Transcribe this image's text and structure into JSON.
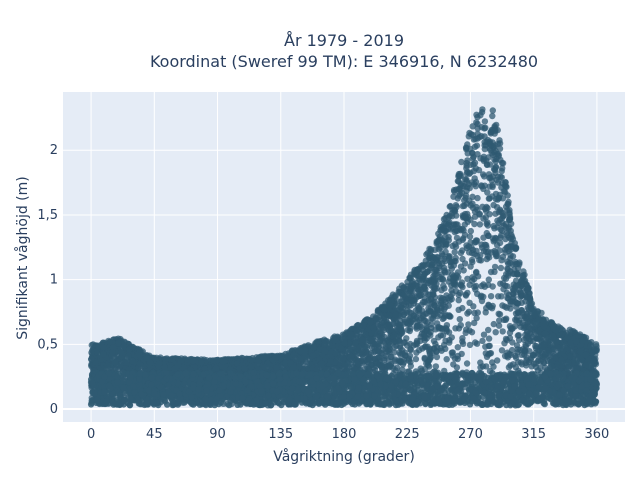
{
  "chart_data": {
    "type": "scatter",
    "title_line1": "År 1979 - 2019",
    "title_line2": "Koordinat (Sweref 99 TM): E 346916, N 6232480",
    "xlabel": "Vågriktning (grader)",
    "ylabel": "Signifikant våghöjd (m)",
    "xlim": [
      -20,
      380
    ],
    "ylim": [
      -0.1,
      2.45
    ],
    "x_ticks": [
      0,
      45,
      90,
      135,
      180,
      225,
      270,
      315,
      360
    ],
    "x_tick_labels": [
      "0",
      "45",
      "90",
      "135",
      "180",
      "225",
      "270",
      "315",
      "360"
    ],
    "y_ticks": [
      0,
      0.5,
      1,
      1.5,
      2
    ],
    "y_tick_labels": [
      "0",
      "0,5",
      "1",
      "1,5",
      "2"
    ],
    "grid": true,
    "marker_color": "#2f5a72",
    "plot_background": "#e5ecf6",
    "envelope": {
      "x": [
        0,
        10,
        20,
        45,
        90,
        135,
        160,
        180,
        200,
        225,
        245,
        260,
        270,
        278,
        285,
        292,
        300,
        315,
        330,
        345,
        360
      ],
      "y_max": [
        0.5,
        0.52,
        0.55,
        0.4,
        0.38,
        0.42,
        0.52,
        0.58,
        0.72,
        1.0,
        1.3,
        1.75,
        2.2,
        2.35,
        2.35,
        2.05,
        1.35,
        0.8,
        0.65,
        0.6,
        0.5
      ]
    }
  }
}
